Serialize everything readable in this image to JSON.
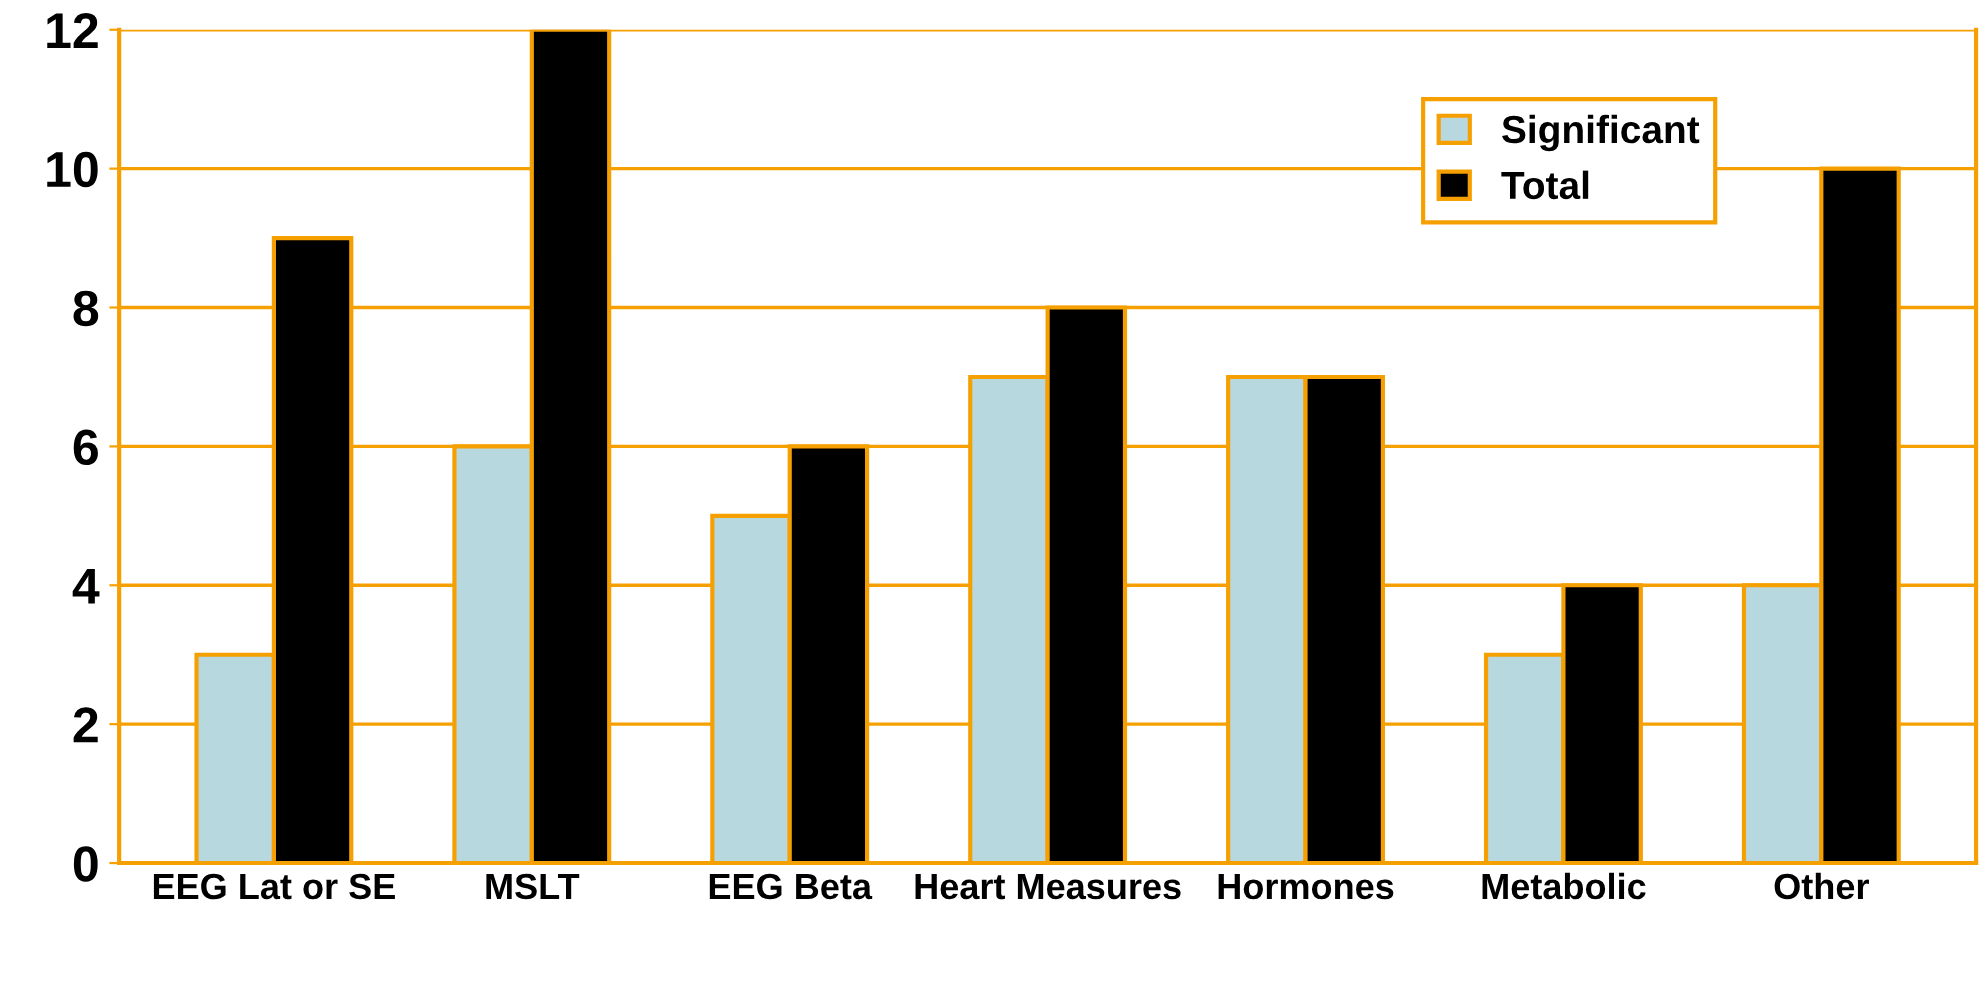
{
  "chart_data": {
    "type": "bar",
    "categories": [
      "EEG Lat or SE",
      "MSLT",
      "EEG Beta",
      "Heart Measures",
      "Hormones",
      "Metabolic",
      "Other"
    ],
    "series": [
      {
        "name": "Significant",
        "color": "#b8d8e0",
        "values": [
          3,
          6,
          5,
          7,
          7,
          3,
          4
        ]
      },
      {
        "name": "Total",
        "color": "#000000",
        "values": [
          9,
          12,
          6,
          8,
          7,
          4,
          10
        ]
      }
    ],
    "ylim": [
      0,
      12
    ],
    "yticks": [
      0,
      2,
      4,
      6,
      8,
      10,
      12
    ],
    "grid": "y",
    "legend": "top right"
  }
}
